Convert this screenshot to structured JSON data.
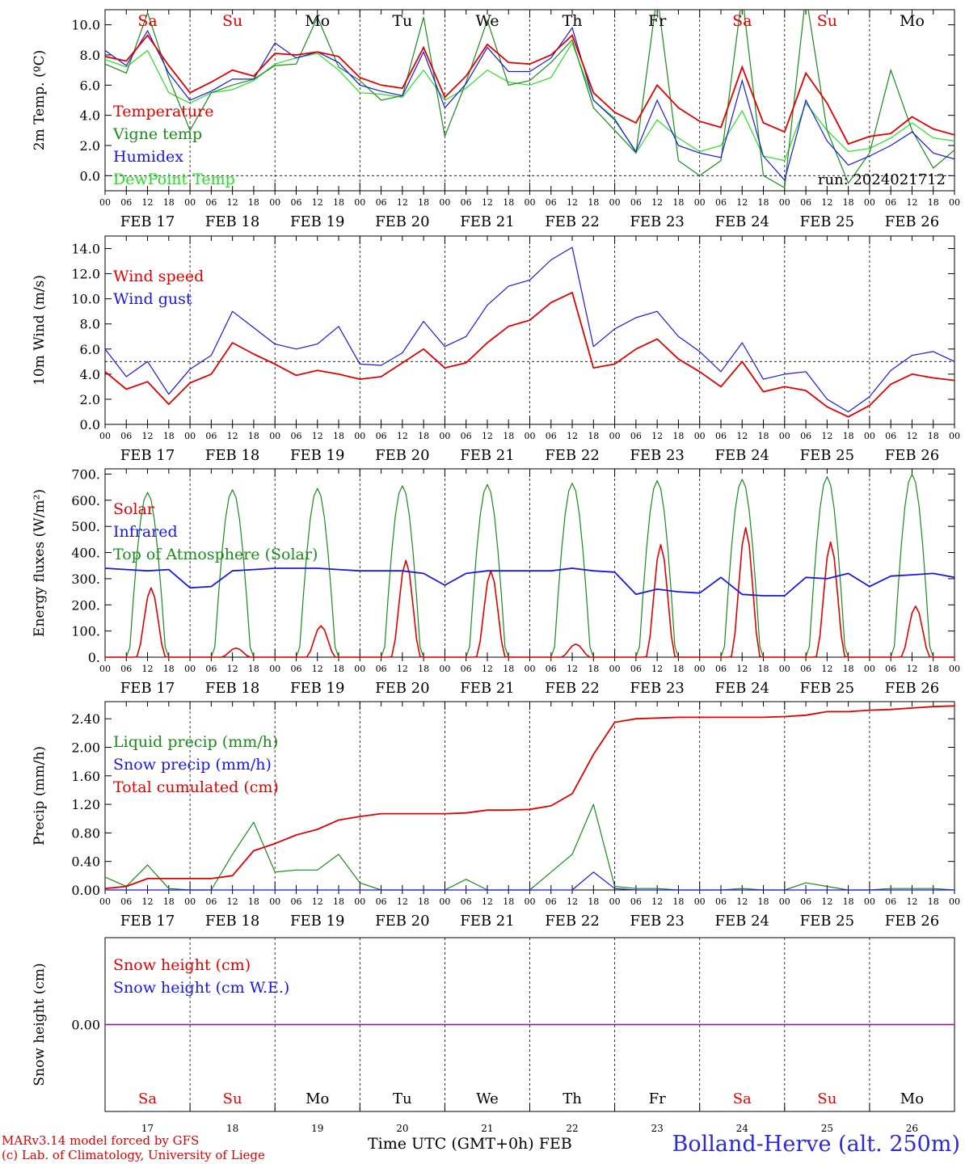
{
  "colors": {
    "red": "#e00000",
    "green": "#1a8a1a",
    "blue": "#1818e0",
    "lightgreen": "#22e022",
    "purple": "#8020a0",
    "black": "#000000"
  },
  "days": [
    {
      "date": "FEB 17",
      "abbr": "Sa",
      "weekend": true,
      "num": "17"
    },
    {
      "date": "FEB 18",
      "abbr": "Su",
      "weekend": true,
      "num": "18"
    },
    {
      "date": "FEB 19",
      "abbr": "Mo",
      "weekend": false,
      "num": "19"
    },
    {
      "date": "FEB 20",
      "abbr": "Tu",
      "weekend": false,
      "num": "20"
    },
    {
      "date": "FEB 21",
      "abbr": "We",
      "weekend": false,
      "num": "21"
    },
    {
      "date": "FEB 22",
      "abbr": "Th",
      "weekend": false,
      "num": "22"
    },
    {
      "date": "FEB 23",
      "abbr": "Fr",
      "weekend": false,
      "num": "23"
    },
    {
      "date": "FEB 24",
      "abbr": "Sa",
      "weekend": true,
      "num": "24"
    },
    {
      "date": "FEB 25",
      "abbr": "Su",
      "weekend": true,
      "num": "25"
    },
    {
      "date": "FEB 26",
      "abbr": "Mo",
      "weekend": false,
      "num": "26"
    }
  ],
  "hour_ticks": [
    "00",
    "06",
    "12",
    "18"
  ],
  "chart_data": [
    {
      "type": "line",
      "ylabel": "2m Temp. (ºC)",
      "ylim": [
        -1,
        11
      ],
      "yticks": [
        "0.0",
        "2.0",
        "4.0",
        "6.0",
        "8.0",
        "10.0"
      ],
      "ytick_values": [
        0,
        2,
        4,
        6,
        8,
        10
      ],
      "dashed_ref": 0,
      "annotation": "run: 2024021712",
      "x_hours": [
        0,
        6,
        12,
        18,
        24,
        30,
        36,
        42,
        48,
        54,
        60,
        66,
        72,
        78,
        84,
        90,
        96,
        102,
        108,
        114,
        120,
        126,
        132,
        138,
        144,
        150,
        156,
        162,
        168,
        174,
        180,
        186,
        192,
        198,
        204,
        210,
        216,
        222,
        228,
        234,
        240
      ],
      "series": [
        {
          "name": "Temperature",
          "color": "red",
          "values": [
            7.9,
            7.6,
            9.3,
            7.3,
            5.5,
            6.2,
            7.0,
            6.6,
            8.1,
            8.0,
            8.2,
            7.9,
            6.5,
            6.0,
            5.8,
            8.5,
            5.2,
            6.6,
            8.7,
            7.5,
            7.4,
            8.0,
            9.3,
            5.5,
            4.2,
            3.5,
            6.0,
            4.5,
            3.6,
            3.2,
            7.2,
            3.5,
            2.9,
            6.8,
            4.8,
            2.1,
            2.6,
            2.8,
            3.9,
            3.1,
            2.7
          ]
        },
        {
          "name": "Vigne temp",
          "color": "green",
          "values": [
            7.4,
            6.8,
            10.8,
            6.5,
            3.0,
            5.5,
            6.0,
            6.4,
            7.3,
            7.4,
            10.5,
            7.2,
            6.3,
            5.0,
            5.3,
            10.5,
            2.6,
            6.2,
            10.3,
            6.0,
            6.3,
            7.5,
            9.0,
            4.5,
            3.0,
            1.5,
            12.0,
            1.0,
            0.0,
            1.0,
            12.0,
            0.0,
            -0.8,
            12.0,
            3.0,
            -0.5,
            1.5,
            7.0,
            3.0,
            0.5,
            1.7
          ]
        },
        {
          "name": "Humidex",
          "color": "blue",
          "values": [
            8.3,
            7.3,
            9.6,
            6.8,
            5.0,
            5.6,
            6.4,
            6.4,
            8.8,
            7.8,
            8.2,
            7.5,
            6.0,
            5.6,
            5.3,
            8.2,
            4.5,
            6.1,
            8.5,
            6.9,
            6.9,
            7.8,
            9.8,
            5.0,
            3.7,
            1.6,
            5.0,
            2.0,
            1.5,
            1.2,
            6.3,
            1.3,
            -0.3,
            5.0,
            2.3,
            0.7,
            1.3,
            2.0,
            2.9,
            1.5,
            1.1
          ]
        },
        {
          "name": "DewPoint Temp",
          "color": "lightgreen",
          "values": [
            7.7,
            7.2,
            8.3,
            5.5,
            4.8,
            5.5,
            5.7,
            6.3,
            7.4,
            7.8,
            8.1,
            7.0,
            5.5,
            5.4,
            5.2,
            7.0,
            5.0,
            5.8,
            7.0,
            6.2,
            6.0,
            6.5,
            8.8,
            5.0,
            3.8,
            1.5,
            3.7,
            2.5,
            1.6,
            2.0,
            4.3,
            1.3,
            1.0,
            4.8,
            3.0,
            1.6,
            1.8,
            2.5,
            3.5,
            2.5,
            2.3
          ]
        }
      ]
    },
    {
      "type": "line",
      "ylabel": "10m Wind (m/s)",
      "ylim": [
        0,
        15
      ],
      "yticks": [
        "0.0",
        "2.0",
        "4.0",
        "6.0",
        "8.0",
        "10.0",
        "12.0",
        "14.0"
      ],
      "ytick_values": [
        0,
        2,
        4,
        6,
        8,
        10,
        12,
        14
      ],
      "dashed_ref": 5,
      "x_hours": [
        0,
        6,
        12,
        18,
        24,
        30,
        36,
        42,
        48,
        54,
        60,
        66,
        72,
        78,
        84,
        90,
        96,
        102,
        108,
        114,
        120,
        126,
        132,
        138,
        144,
        150,
        156,
        162,
        168,
        174,
        180,
        186,
        192,
        198,
        204,
        210,
        216,
        222,
        228,
        234,
        240
      ],
      "series": [
        {
          "name": "Wind speed",
          "color": "red",
          "values": [
            4.2,
            2.8,
            3.4,
            1.6,
            3.3,
            4.0,
            6.5,
            5.6,
            4.8,
            3.9,
            4.3,
            4.0,
            3.6,
            3.8,
            4.9,
            6.0,
            4.5,
            4.9,
            6.5,
            7.8,
            8.3,
            9.7,
            10.5,
            4.5,
            4.8,
            6.0,
            6.8,
            5.2,
            4.2,
            3.0,
            5.0,
            2.6,
            3.0,
            2.7,
            1.4,
            0.6,
            1.5,
            3.2,
            4.0,
            3.7,
            3.5
          ]
        },
        {
          "name": "Wind gust",
          "color": "blue",
          "values": [
            6.0,
            3.8,
            5.0,
            2.4,
            4.4,
            5.5,
            9.0,
            7.7,
            6.4,
            6.0,
            6.4,
            7.8,
            4.8,
            4.7,
            5.7,
            8.2,
            6.2,
            7.0,
            9.5,
            11.0,
            11.5,
            13.1,
            14.1,
            6.2,
            7.6,
            8.5,
            9.0,
            7.0,
            5.8,
            4.2,
            6.5,
            3.6,
            4.0,
            4.2,
            2.0,
            1.0,
            2.2,
            4.3,
            5.5,
            5.8,
            5.0
          ]
        }
      ]
    },
    {
      "type": "line",
      "ylabel": "Energy fluxes (W/m²)",
      "ylim": [
        0,
        720
      ],
      "yticks": [
        "0.",
        "100.",
        "200.",
        "300.",
        "400.",
        "500.",
        "600.",
        "700."
      ],
      "ytick_values": [
        0,
        100,
        200,
        300,
        400,
        500,
        600,
        700
      ],
      "days_count": 10,
      "toa_peaks": [
        630,
        640,
        645,
        655,
        660,
        665,
        675,
        680,
        690,
        700
      ],
      "solar_peaks": [
        265,
        35,
        120,
        370,
        330,
        50,
        430,
        495,
        440,
        195
      ],
      "series": [
        {
          "name": "Solar",
          "color": "red"
        },
        {
          "name": "Infrared",
          "color": "blue",
          "x_hours": [
            0,
            6,
            12,
            18,
            24,
            30,
            36,
            42,
            48,
            54,
            60,
            66,
            72,
            78,
            84,
            90,
            96,
            102,
            108,
            114,
            120,
            126,
            132,
            138,
            144,
            150,
            156,
            162,
            168,
            174,
            180,
            186,
            192,
            198,
            204,
            210,
            216,
            222,
            228,
            234,
            240
          ],
          "values": [
            340,
            335,
            330,
            335,
            265,
            270,
            330,
            335,
            340,
            340,
            340,
            335,
            330,
            330,
            330,
            320,
            275,
            320,
            330,
            330,
            330,
            330,
            340,
            330,
            325,
            240,
            260,
            250,
            245,
            305,
            240,
            235,
            235,
            305,
            300,
            320,
            270,
            310,
            315,
            320,
            305
          ]
        },
        {
          "name": "Top of Atmosphere (Solar)",
          "color": "green"
        }
      ]
    },
    {
      "type": "line",
      "ylabel": "Precip (mm/h)",
      "ylim": [
        0,
        2.64
      ],
      "yticks": [
        "0.00",
        "0.40",
        "0.80",
        "1.20",
        "1.60",
        "2.00",
        "2.40"
      ],
      "ytick_values": [
        0,
        0.4,
        0.8,
        1.2,
        1.6,
        2.0,
        2.4
      ],
      "x_hours": [
        0,
        6,
        12,
        18,
        24,
        30,
        36,
        42,
        48,
        54,
        60,
        66,
        72,
        78,
        84,
        90,
        96,
        102,
        108,
        114,
        120,
        126,
        132,
        138,
        144,
        150,
        156,
        162,
        168,
        174,
        180,
        186,
        192,
        198,
        204,
        210,
        216,
        222,
        228,
        234,
        240
      ],
      "series": [
        {
          "name": "Liquid precip (mm/h)",
          "color": "green",
          "values": [
            0.18,
            0.05,
            0.35,
            0.02,
            0.0,
            0.0,
            0.5,
            0.95,
            0.25,
            0.28,
            0.28,
            0.5,
            0.1,
            0.0,
            0.0,
            0.0,
            0.0,
            0.15,
            0.0,
            0.0,
            0.0,
            0.25,
            0.5,
            1.2,
            0.05,
            0.02,
            0.02,
            0.0,
            0.0,
            0.0,
            0.02,
            0.0,
            0.0,
            0.1,
            0.05,
            0.0,
            0.0,
            0.02,
            0.02,
            0.02,
            0.0
          ]
        },
        {
          "name": "Snow precip (mm/h)",
          "color": "blue",
          "values": [
            0,
            0,
            0,
            0,
            0,
            0,
            0,
            0,
            0,
            0,
            0,
            0,
            0,
            0,
            0,
            0,
            0,
            0,
            0,
            0,
            0,
            0,
            0,
            0.25,
            0.02,
            0,
            0,
            0,
            0,
            0,
            0,
            0,
            0,
            0,
            0,
            0,
            0,
            0,
            0,
            0,
            0
          ]
        },
        {
          "name": "Total cumulated (cm)",
          "color": "red",
          "values": [
            0.02,
            0.05,
            0.16,
            0.16,
            0.16,
            0.16,
            0.2,
            0.55,
            0.65,
            0.77,
            0.85,
            0.98,
            1.03,
            1.07,
            1.07,
            1.07,
            1.07,
            1.08,
            1.12,
            1.12,
            1.13,
            1.18,
            1.35,
            1.9,
            2.35,
            2.4,
            2.41,
            2.42,
            2.42,
            2.42,
            2.42,
            2.42,
            2.43,
            2.45,
            2.5,
            2.5,
            2.52,
            2.53,
            2.55,
            2.57,
            2.58
          ]
        }
      ]
    },
    {
      "type": "line",
      "ylabel": "Snow height (cm)",
      "yticks": [
        "0.00"
      ],
      "ytick_values": [
        0
      ],
      "series": [
        {
          "name": "Snow height (cm)",
          "color": "red",
          "values": [
            0,
            0
          ]
        },
        {
          "name": "Snow height (cm W.E.)",
          "color": "blue",
          "values": [
            0,
            0
          ]
        }
      ]
    }
  ],
  "footer": {
    "credit_line1": "MARv3.14 model forced by GFS",
    "credit_line2": "(c) Lab. of Climatology, University of Liege",
    "time_label": "Time UTC (GMT+0h)",
    "month": "FEB",
    "location": "Bolland-Herve (alt. 250m)"
  }
}
